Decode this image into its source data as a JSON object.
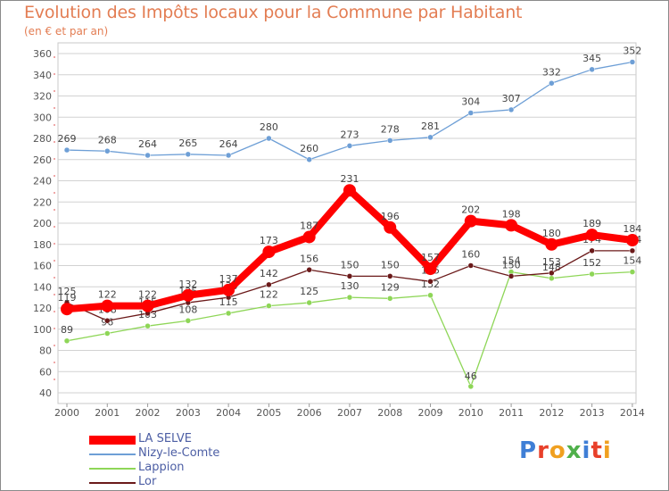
{
  "title": "Evolution des Impôts locaux pour la Commune par Habitant",
  "subtitle": "(en € et par an)",
  "chart_data": {
    "type": "line",
    "title": "Evolution des Impôts locaux pour la Commune par Habitant",
    "ylabel": "(en € et par an)",
    "xlabel": "",
    "x": [
      "2000",
      "2001",
      "2002",
      "2003",
      "2004",
      "2005",
      "2006",
      "2007",
      "2008",
      "2009",
      "2010",
      "2011",
      "2012",
      "2013",
      "2014"
    ],
    "ylim": [
      40,
      360
    ],
    "yticks": [
      40,
      60,
      80,
      100,
      120,
      140,
      160,
      180,
      200,
      220,
      240,
      260,
      280,
      300,
      320,
      340,
      360
    ],
    "grid": "horizontal",
    "series": [
      {
        "name": "LA SELVE",
        "color": "#ff0000",
        "values": [
          119,
          122,
          122,
          132,
          137,
          173,
          187,
          231,
          196,
          157,
          202,
          198,
          180,
          189,
          184
        ]
      },
      {
        "name": "Nizy-le-Comte",
        "color": "#6e9fd6",
        "values": [
          269,
          268,
          264,
          265,
          264,
          280,
          260,
          273,
          278,
          281,
          304,
          307,
          332,
          345,
          352
        ]
      },
      {
        "name": "Lappion",
        "color": "#8ed657",
        "values": [
          89,
          96,
          103,
          108,
          115,
          122,
          125,
          130,
          129,
          132,
          46,
          154,
          148,
          152,
          154
        ]
      },
      {
        "name": "Lor",
        "color": "#6b1a1a",
        "values": [
          125,
          108,
          115,
          125,
          130,
          142,
          156,
          150,
          150,
          145,
          160,
          150,
          153,
          174,
          174
        ]
      }
    ]
  },
  "legend": [
    {
      "label": "LA SELVE",
      "color": "#ff0000"
    },
    {
      "label": "Nizy-le-Comte",
      "color": "#6e9fd6"
    },
    {
      "label": "Lappion",
      "color": "#8ed657"
    },
    {
      "label": "Lor",
      "color": "#6b1a1a"
    }
  ],
  "logo": {
    "text": "Proxiti",
    "colors": [
      "#3f7fd6",
      "#e8402a",
      "#f0a020",
      "#4fb04a",
      "#3f7fd6",
      "#e8402a",
      "#f0a020"
    ]
  }
}
